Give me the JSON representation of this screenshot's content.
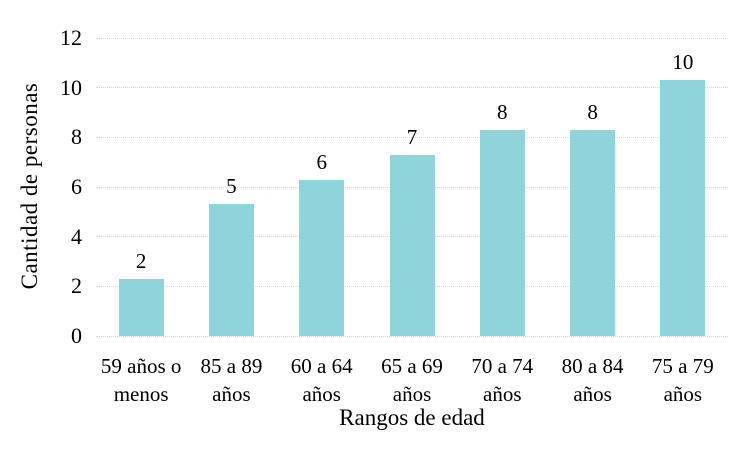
{
  "chart_data": {
    "type": "bar",
    "title": "",
    "xlabel": "Rangos de edad",
    "ylabel": "Cantidad de personas",
    "categories": [
      "59 años o\nmenos",
      "85 a 89\naños",
      "60 a 64\naños",
      "65 a 69\naños",
      "70 a 74\naños",
      "80 a 84\naños",
      "75 a 79\naños"
    ],
    "values": [
      2,
      5,
      6,
      7,
      8,
      8,
      10
    ],
    "bar_heights": [
      2.3,
      5.3,
      6.3,
      7.3,
      8.3,
      8.3,
      10.3
    ],
    "yticks": [
      0,
      2,
      4,
      6,
      8,
      10,
      12
    ],
    "ylim": [
      0,
      12
    ],
    "grid": true,
    "legend": false,
    "colors": {
      "bar": "#8fd3db",
      "gridline": "#d9d9d9",
      "text": "#000000",
      "background": "#ffffff"
    }
  }
}
